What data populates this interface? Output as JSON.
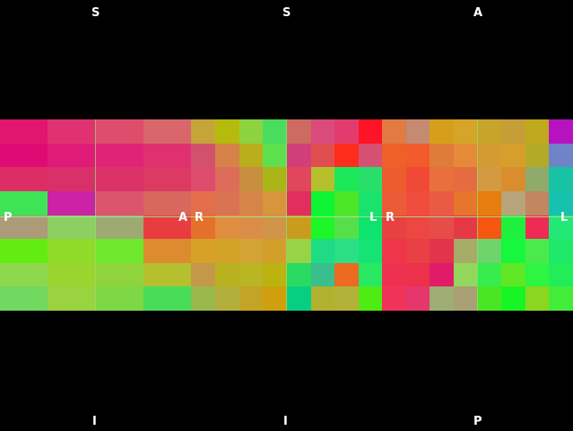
{
  "views": [
    {
      "top_label": "S",
      "bottom_label": "I",
      "left_label": "P",
      "right_label": "A",
      "cells": [
        "#e0166f",
        "#e03270",
        "#de4e6c",
        "#d8676c",
        "#df0b75",
        "#df1b77",
        "#e02377",
        "#df306f",
        "#dd2d67",
        "#d9306a",
        "#da3269",
        "#dc3a62",
        "#3ee456",
        "#cb22a6",
        "#db556c",
        "#d8675e",
        "#ab9b79",
        "#8ccf62",
        "#9eaa73",
        "#e73d42",
        "#63ec12",
        "#90da2a",
        "#6fe72c",
        "#dc8b2f",
        "#8ed84d",
        "#99d52e",
        "#8fd43c",
        "#b5c02f",
        "#71d860",
        "#99d33f",
        "#7ed845",
        "#48dc5a"
      ]
    },
    {
      "top_label": "S",
      "bottom_label": "I",
      "left_label": "R",
      "right_label": "L",
      "cells": [
        "#c5a439",
        "#b5bb0c",
        "#8dd23f",
        "#4add5d",
        "#d2526e",
        "#d68249",
        "#b9ae1b",
        "#5ee04e",
        "#de4c6d",
        "#dc6d5b",
        "#c88d3e",
        "#aab618",
        "#e36e4b",
        "#da7352",
        "#d68448",
        "#d8953b",
        "#e5702b",
        "#e08f40",
        "#dc8c49",
        "#d09548",
        "#d6a126",
        "#d4a226",
        "#d3a336",
        "#d2a02a",
        "#c39848",
        "#b9b220",
        "#b9b523",
        "#bab310",
        "#99b94c",
        "#b2ae3c",
        "#c3a427",
        "#d09f0e"
      ]
    },
    {
      "top_label": "A",
      "bottom_label": "P",
      "left_label": "R",
      "right_label": "L",
      "cells": [
        "#e17b42",
        "#c48a72",
        "#d59f1c",
        "#d6a428",
        "#f15f29",
        "#f25b2b",
        "#e07c3a",
        "#e68a3a",
        "#ed5c2f",
        "#f04938",
        "#e9703d",
        "#e56c40",
        "#ec5b37",
        "#ef4d3d",
        "#e95b45",
        "#e5762b",
        "#e74141",
        "#ec4742",
        "#e64c48",
        "#e53a45",
        "#ee3549",
        "#e94045",
        "#e2344a",
        "#a6ac68",
        "#ee3150",
        "#ec314a",
        "#e21b68",
        "#93d75c",
        "#ef3359",
        "#e4376b",
        "#9fac74",
        "#a9a073"
      ]
    },
    {
      "cells_extra_note": "",
      "cells": [
        "#2de22f",
        "#ff1c2d",
        "#e63566",
        "#f53d4d",
        "#d0a13e",
        "#f03d52",
        "#ff2e14",
        "#ef3f4a",
        "#b3be2e",
        "#ff1f30",
        "#ef3a3f",
        "#e94448"
      ]
    }
  ],
  "strip_right": {
    "cells": [
      "#c7a42a",
      "#c59e37",
      "#bfa91c",
      "#b712bf",
      "#d49b32",
      "#d89e2b",
      "#b2ab28",
      "#6f83c9",
      "#d39a42",
      "#d98d2c",
      "#8eab6c",
      "#18c2a4",
      "#e67d0f",
      "#b9a37b",
      "#c28660",
      "#18c1ad",
      "#f55610",
      "#1ff03e",
      "#ef2a54",
      "#22e877",
      "#6fd46c",
      "#16f73e",
      "#4bea4c",
      "#20e86a",
      "#38ec4d",
      "#60e827",
      "#2ef442",
      "#22ec58",
      "#4ae624",
      "#18f524",
      "#8cd621",
      "#44ec3a"
    ]
  },
  "strip_mid": {
    "cells": [
      "#cd6b61",
      "#d84b7a",
      "#e23c6f",
      "#ff1427",
      "#d23f78",
      "#e14e4f",
      "#fc2d1d",
      "#d65073",
      "#e0465c",
      "#b6c02c",
      "#1de85a",
      "#27df6a",
      "#e12e5f",
      "#0ff534",
      "#4de626",
      "#1ae36d",
      "#ca9c1d",
      "#1ef727",
      "#57df4a",
      "#0ee36e",
      "#97d247",
      "#1edb84",
      "#2bdf87",
      "#15e473",
      "#2bda62",
      "#3abf8c",
      "#ec6a22",
      "#28e864",
      "#06cf82",
      "#b0b12e",
      "#b2b23a",
      "#4eec13"
    ]
  }
}
